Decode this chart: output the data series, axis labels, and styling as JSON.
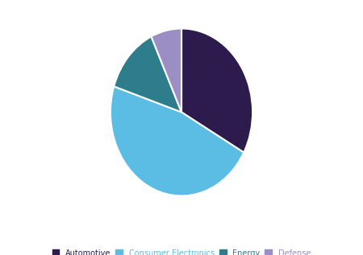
{
  "labels": [
    "Automotive",
    "Consumer Electronics",
    "Energy",
    "Defense"
  ],
  "values": [
    33,
    47,
    13,
    7
  ],
  "colors": [
    "#2d1b4e",
    "#5bbde4",
    "#2e7d8c",
    "#9b8ec4"
  ],
  "legend_labels": [
    "Automotive",
    "Consumer Electronics",
    "Energy",
    "Defense"
  ],
  "legend_colors": [
    "#2d1b4e",
    "#5bbde4",
    "#2e7d8c",
    "#9b8ec4"
  ],
  "startangle": 90,
  "background_color": "#ffffff",
  "wedge_edge_color": "#ffffff",
  "wedge_linewidth": 1.5
}
